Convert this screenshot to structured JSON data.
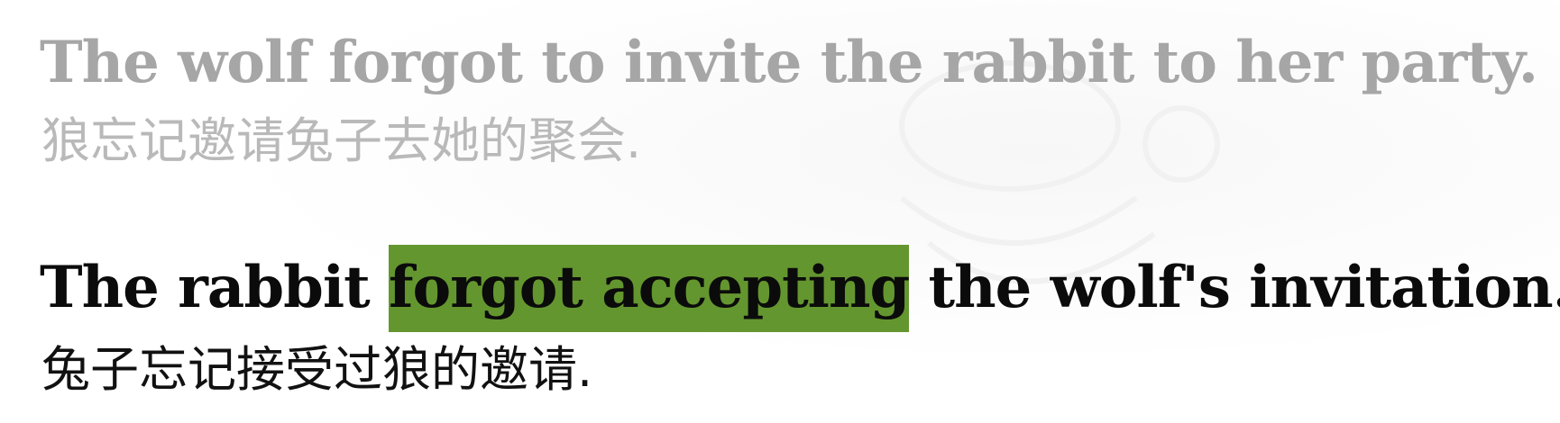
{
  "sentences": [
    {
      "english": "The wolf forgot to invite the rabbit to her party.",
      "chinese": "狼忘记邀请兔子去她的聚会."
    },
    {
      "english_before": "The rabbit ",
      "english_highlight": "forgot accepting",
      "english_after": " the wolf's invitation.",
      "chinese": "兔子忘记接受过狼的邀请."
    }
  ],
  "colors": {
    "highlight": "#64962f",
    "faded_text": "#a6a6a6",
    "active_text": "#0b0b0b"
  }
}
